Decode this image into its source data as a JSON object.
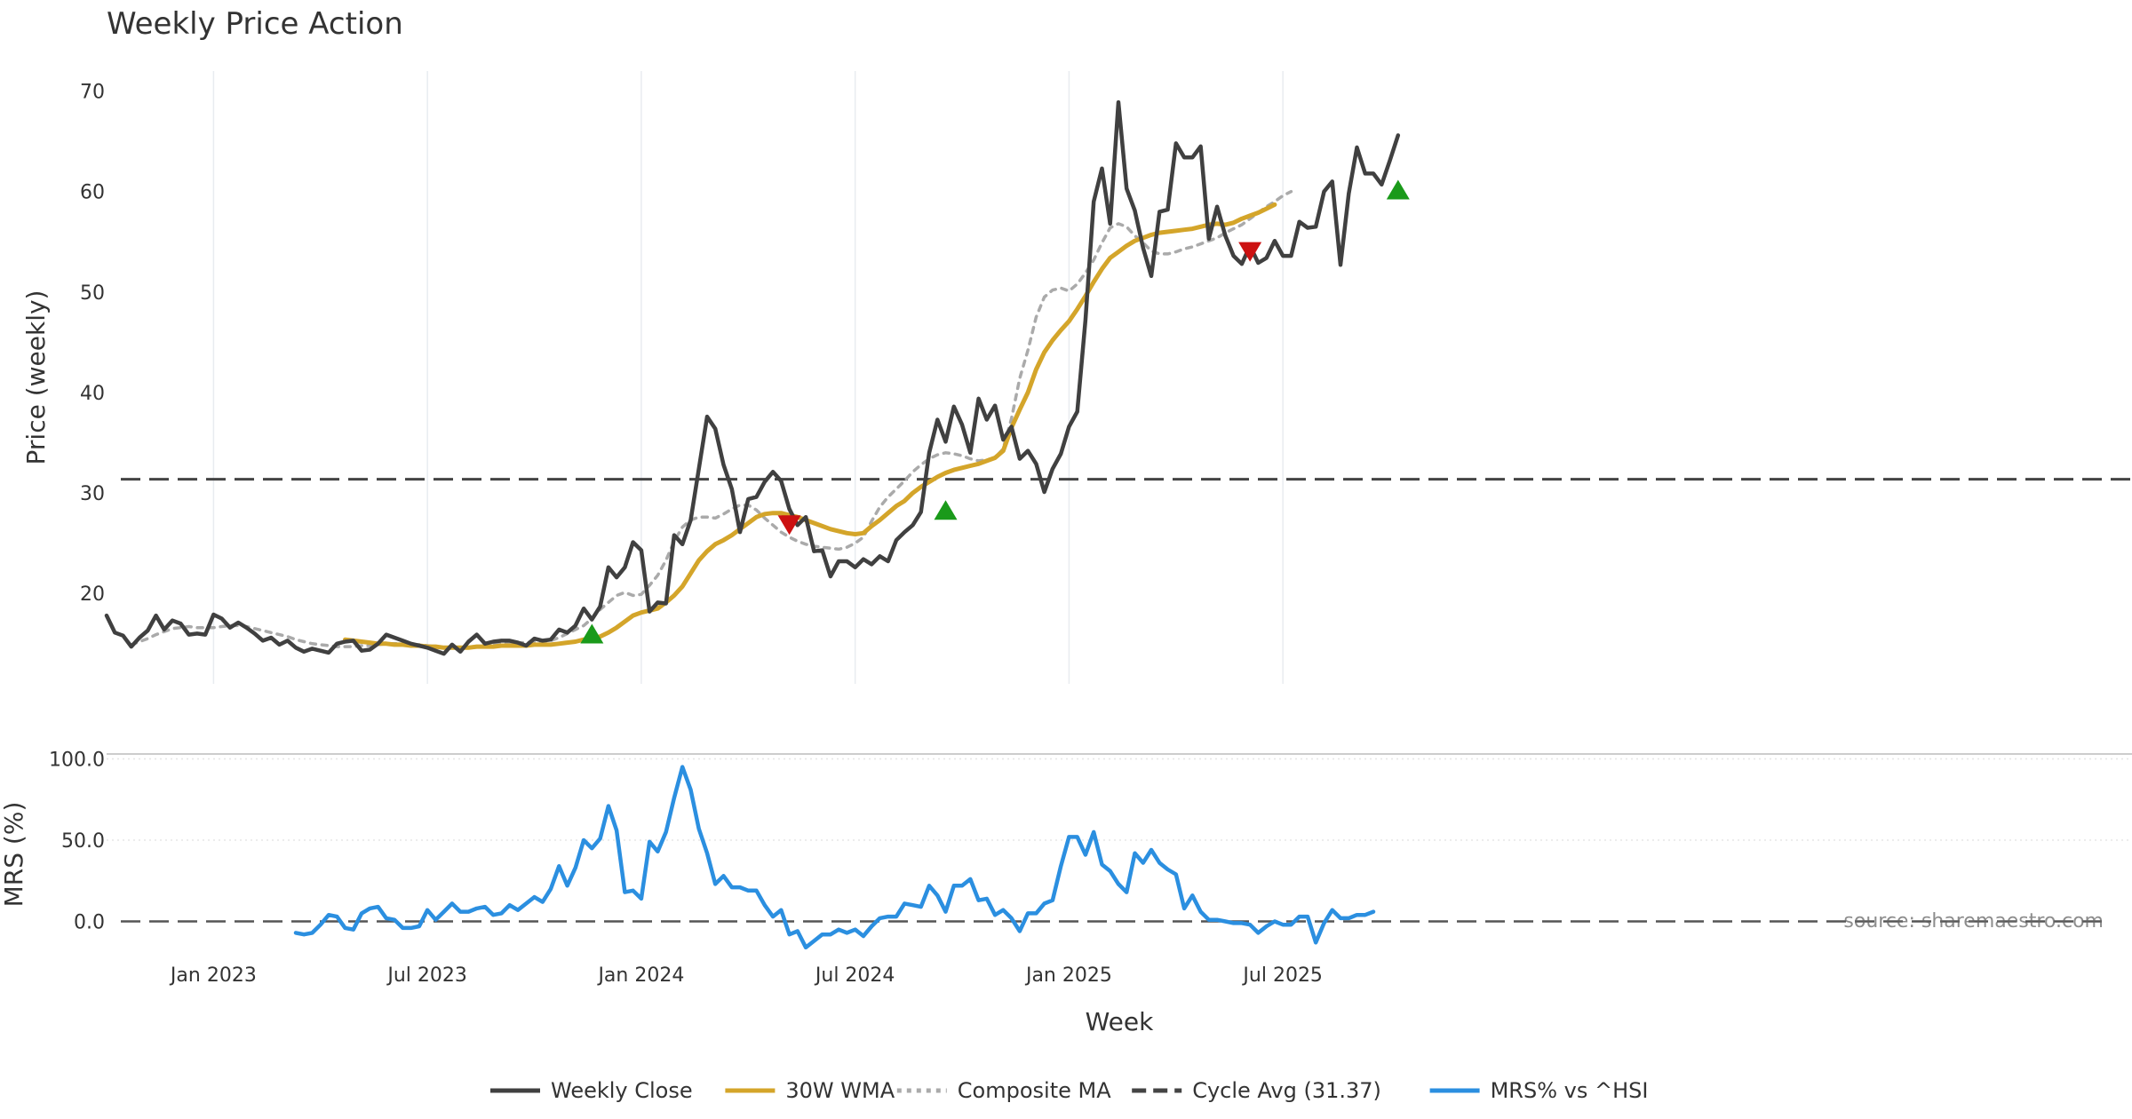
{
  "chart_data": [
    {
      "panel": "price",
      "type": "line",
      "title": "Weekly Price Action",
      "xlabel": "",
      "ylabel": "Price (weekly)",
      "ylim": [
        11,
        72
      ],
      "yticks": [
        20,
        30,
        40,
        50,
        60,
        70
      ],
      "grid": "vertical",
      "x_ticks": [
        "Jan 2023",
        "Jul 2023",
        "Jan 2024",
        "Jul 2024",
        "Jan 2025",
        "Jul 2025"
      ],
      "series": [
        {
          "name": "Weekly Close",
          "color": "#404040",
          "style": "solid",
          "start_week": 0,
          "values": [
            17.8,
            16.1,
            15.8,
            14.7,
            15.6,
            16.3,
            17.8,
            16.4,
            17.3,
            17.0,
            15.9,
            16.0,
            15.9,
            17.9,
            17.5,
            16.6,
            17.1,
            16.6,
            16.0,
            15.3,
            15.6,
            14.9,
            15.3,
            14.6,
            14.2,
            14.5,
            14.3,
            14.1,
            15.0,
            15.2,
            15.3,
            14.3,
            14.4,
            15.0,
            15.9,
            15.6,
            15.3,
            15.0,
            14.8,
            14.6,
            14.3,
            14.0,
            14.9,
            14.2,
            15.2,
            15.9,
            15.0,
            15.2,
            15.3,
            15.3,
            15.1,
            14.8,
            15.5,
            15.3,
            15.4,
            16.4,
            16.1,
            16.8,
            18.5,
            17.4,
            18.7,
            22.6,
            21.6,
            22.6,
            25.1,
            24.3,
            18.2,
            19.1,
            19.0,
            25.8,
            24.9,
            27.3,
            32.4,
            37.6,
            36.4,
            32.8,
            30.4,
            26.1,
            29.4,
            29.6,
            31.1,
            32.1,
            31.2,
            28.4,
            26.8,
            27.6,
            24.2,
            24.3,
            21.7,
            23.2,
            23.2,
            22.6,
            23.4,
            22.9,
            23.7,
            23.2,
            25.3,
            26.1,
            26.8,
            28.1,
            34.0,
            37.3,
            35.1,
            38.6,
            36.8,
            34.0,
            39.4,
            37.3,
            38.7,
            35.3,
            36.6,
            33.4,
            34.2,
            32.9,
            30.1,
            32.4,
            33.9,
            36.6,
            38.1,
            47.2,
            59.0,
            62.3,
            56.8,
            68.9,
            60.3,
            58.1,
            54.4,
            51.6,
            58.0,
            58.2,
            64.8,
            63.4,
            63.4,
            64.5,
            55.3,
            58.5,
            55.6,
            53.6,
            52.8,
            54.6,
            52.9,
            53.4,
            55.1,
            53.6,
            53.6,
            57.0,
            56.4,
            56.5,
            60.0,
            61.0,
            52.7,
            59.8,
            64.4,
            61.8,
            61.8,
            60.7,
            63.1,
            65.6
          ]
        },
        {
          "name": "30W WMA",
          "color": "#D4A52A",
          "style": "solid",
          "start_week": 29,
          "values": [
            15.4,
            15.3,
            15.2,
            15.1,
            15.0,
            15.0,
            14.9,
            14.9,
            14.8,
            14.8,
            14.7,
            14.7,
            14.6,
            14.6,
            14.6,
            14.6,
            14.7,
            14.7,
            14.7,
            14.8,
            14.8,
            14.8,
            14.8,
            14.9,
            14.9,
            14.9,
            15.0,
            15.1,
            15.2,
            15.4,
            15.5,
            15.7,
            16.1,
            16.6,
            17.2,
            17.8,
            18.1,
            18.3,
            18.5,
            19.1,
            19.8,
            20.7,
            22.0,
            23.3,
            24.2,
            24.9,
            25.3,
            25.8,
            26.4,
            27.0,
            27.6,
            27.9,
            28.0,
            28.0,
            27.8,
            27.6,
            27.3,
            27.0,
            26.7,
            26.4,
            26.2,
            26.0,
            25.9,
            26.0,
            26.7,
            27.3,
            28.0,
            28.7,
            29.2,
            30.0,
            30.6,
            31.1,
            31.6,
            32.0,
            32.3,
            32.5,
            32.7,
            32.9,
            33.2,
            33.5,
            34.2,
            36.5,
            38.3,
            40.0,
            42.3,
            44.0,
            45.2,
            46.2,
            47.1,
            48.3,
            49.6,
            51.0,
            52.3,
            53.4,
            54.0,
            54.6,
            55.1,
            55.4,
            55.7,
            55.9,
            56.0,
            56.1,
            56.2,
            56.3,
            56.5,
            56.7,
            56.8,
            56.7,
            56.9,
            57.3,
            57.6,
            57.9,
            58.3,
            58.7
          ]
        },
        {
          "name": "Composite MA",
          "color": "#AAAAAA",
          "style": "dotted",
          "start_week": 3,
          "values": [
            14.9,
            15.2,
            15.5,
            15.9,
            16.2,
            16.5,
            16.6,
            16.7,
            16.6,
            16.6,
            16.6,
            16.7,
            16.8,
            16.8,
            16.7,
            16.5,
            16.3,
            16.1,
            15.9,
            15.7,
            15.4,
            15.2,
            15.0,
            14.9,
            14.8,
            14.7,
            14.7,
            14.7,
            14.8,
            14.8,
            14.9,
            15.0,
            15.0,
            15.0,
            14.9,
            14.9,
            14.8,
            14.7,
            14.6,
            14.6,
            14.6,
            14.6,
            14.7,
            14.8,
            14.9,
            15.0,
            15.0,
            15.1,
            15.1,
            15.2,
            15.2,
            15.3,
            15.6,
            16.0,
            16.4,
            16.8,
            17.5,
            18.4,
            19.1,
            19.8,
            20.1,
            19.8,
            19.9,
            20.8,
            21.8,
            23.3,
            25.2,
            26.6,
            27.3,
            27.6,
            27.6,
            27.5,
            27.9,
            28.4,
            28.8,
            28.8,
            28.3,
            27.5,
            26.8,
            26.1,
            25.6,
            25.2,
            24.9,
            24.7,
            24.6,
            24.5,
            24.4,
            24.6,
            25.0,
            25.6,
            27.2,
            28.6,
            29.6,
            30.4,
            31.2,
            32.1,
            32.8,
            33.4,
            33.8,
            34.0,
            33.9,
            33.7,
            33.4,
            33.2,
            33.3,
            33.5,
            34.4,
            37.4,
            41.4,
            44.2,
            47.5,
            49.5,
            50.2,
            50.4,
            50.1,
            50.8,
            51.9,
            53.2,
            54.9,
            56.4,
            56.8,
            56.5,
            55.6,
            54.9,
            54.1,
            53.8,
            53.8,
            54.0,
            54.3,
            54.5,
            54.8,
            55.1,
            55.4,
            55.9,
            56.3,
            56.7,
            57.3,
            57.9,
            58.5,
            59.0,
            59.6,
            60.0
          ]
        }
      ],
      "reference_lines": [
        {
          "name": "Cycle Avg (31.37)",
          "value": 31.37,
          "color": "#444444",
          "style": "dashed"
        }
      ],
      "markers": [
        {
          "type": "buy",
          "shape": "triangle-up",
          "color": "#1A9A1A",
          "week": 59,
          "value": 16.0
        },
        {
          "type": "sell",
          "shape": "triangle-down",
          "color": "#CC1111",
          "week": 83,
          "value": 26.8
        },
        {
          "type": "buy",
          "shape": "triangle-up",
          "color": "#1A9A1A",
          "week": 102,
          "value": 28.3
        },
        {
          "type": "sell",
          "shape": "triangle-down",
          "color": "#CC1111",
          "week": 139,
          "value": 54.0
        },
        {
          "type": "buy",
          "shape": "triangle-up",
          "color": "#1A9A1A",
          "week": 157,
          "value": 60.2
        }
      ]
    },
    {
      "panel": "mrs",
      "type": "line",
      "title": "",
      "xlabel": "Week",
      "ylabel": "MRS (%)",
      "ylim": [
        -15,
        103
      ],
      "yticks": [
        0.0,
        50.0,
        100.0
      ],
      "ytick_labels": [
        "0.0",
        "50.0",
        "100.0"
      ],
      "grid": "horizontal",
      "x_ticks": [
        "Jan 2023",
        "Jul 2023",
        "Jan 2024",
        "Jul 2024",
        "Jan 2025",
        "Jul 2025"
      ],
      "series": [
        {
          "name": "MRS% vs ^HSI",
          "color": "#2B8FE0",
          "style": "solid",
          "start_week": 23,
          "values": [
            -7,
            -8,
            -7,
            -2,
            4,
            3,
            -4,
            -5,
            5,
            8,
            9,
            2,
            1,
            -4,
            -4,
            -3,
            7,
            1,
            6,
            11,
            6,
            6,
            8,
            9,
            4,
            5,
            10,
            7,
            11,
            15,
            12,
            20,
            34,
            22,
            33,
            50,
            45,
            51,
            71,
            56,
            18,
            19,
            14,
            49,
            43,
            55,
            76,
            95,
            81,
            57,
            42,
            23,
            28,
            21,
            21,
            19,
            19,
            10,
            3,
            7,
            -8,
            -6,
            -16,
            -12,
            -8,
            -8,
            -5,
            -7,
            -5,
            -9,
            -3,
            2,
            3,
            3,
            11,
            10,
            9,
            22,
            16,
            6,
            22,
            22,
            26,
            13,
            14,
            4,
            7,
            2,
            -6,
            5,
            5,
            11,
            13,
            34,
            52,
            52,
            41,
            55,
            35,
            31,
            23,
            18,
            42,
            36,
            44,
            36,
            32,
            29,
            8,
            16,
            6,
            1,
            1,
            0,
            -1,
            -1,
            -2,
            -7,
            -3,
            0,
            -2,
            -2,
            3,
            3,
            -13,
            -1,
            7,
            2,
            2,
            4,
            4,
            6
          ]
        }
      ],
      "reference_lines": [
        {
          "name": "zero",
          "value": 0,
          "color": "#555555",
          "style": "dashed"
        }
      ]
    }
  ],
  "legend": {
    "placement": "bottom-center",
    "items": [
      {
        "label": "Weekly Close",
        "color": "#404040",
        "style": "solid"
      },
      {
        "label": "30W WMA",
        "color": "#D4A52A",
        "style": "solid"
      },
      {
        "label": "Composite MA",
        "color": "#AAAAAA",
        "style": "dotted"
      },
      {
        "label": "Cycle Avg (31.37)",
        "color": "#444444",
        "style": "dashed"
      },
      {
        "label": "MRS% vs ^HSI",
        "color": "#2B8FE0",
        "style": "solid"
      }
    ]
  },
  "watermark": "source: sharemaestro.com"
}
